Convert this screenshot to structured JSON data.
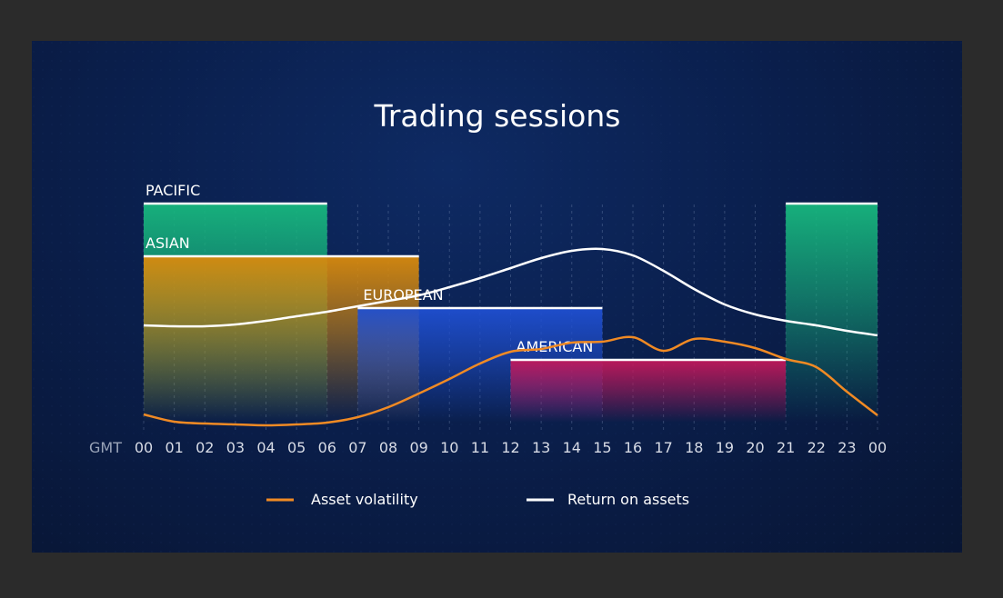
{
  "chart_data": {
    "type": "line",
    "title": "Trading sessions",
    "x_prefix": "GMT",
    "x_ticks": [
      "00",
      "01",
      "02",
      "03",
      "04",
      "05",
      "06",
      "07",
      "08",
      "09",
      "10",
      "11",
      "12",
      "13",
      "14",
      "15",
      "16",
      "17",
      "18",
      "19",
      "20",
      "21",
      "22",
      "23",
      "00"
    ],
    "sessions": [
      {
        "name": "PACIFIC",
        "start": 0,
        "end": 6,
        "color": "#17b77e"
      },
      {
        "name": "PACIFIC",
        "start": 21,
        "end": 24,
        "color": "#17b77e",
        "label_hidden": true
      },
      {
        "name": "ASIAN",
        "start": 0,
        "end": 9,
        "color": "#d98a0c"
      },
      {
        "name": "EUROPEAN",
        "start": 7,
        "end": 15,
        "color": "#1f4fd1"
      },
      {
        "name": "AMERICAN",
        "start": 12,
        "end": 21,
        "color": "#c2185b"
      }
    ],
    "series": [
      {
        "name": "Asset volatility",
        "color": "#f08a24",
        "x": [
          0,
          1,
          2,
          3,
          4,
          5,
          6,
          7,
          8,
          9,
          10,
          11,
          12,
          13,
          14,
          15,
          16,
          17,
          18,
          19,
          20,
          21,
          22,
          23,
          24
        ],
        "values": [
          14,
          6,
          4,
          3,
          2,
          3,
          5,
          11,
          22,
          37,
          53,
          70,
          83,
          86,
          93,
          94,
          99,
          84,
          97,
          94,
          87,
          75,
          66,
          39,
          13
        ]
      },
      {
        "name": "Return on assets",
        "color": "#ffffff",
        "x": [
          0,
          1,
          2,
          3,
          4,
          5,
          6,
          7,
          8,
          9,
          10,
          11,
          12,
          13,
          14,
          15,
          16,
          17,
          18,
          19,
          20,
          21,
          22,
          23,
          24
        ],
        "values": [
          112,
          111,
          111,
          113,
          117,
          122,
          127,
          133,
          139,
          145,
          154,
          164,
          175,
          186,
          194,
          196,
          189,
          172,
          152,
          135,
          124,
          117,
          112,
          106,
          101
        ]
      }
    ],
    "xlim": [
      0,
      24
    ],
    "ylim": [
      0,
      220
    ],
    "legend": [
      "Asset volatility",
      "Return on assets"
    ],
    "legend_position": "bottom-center"
  }
}
